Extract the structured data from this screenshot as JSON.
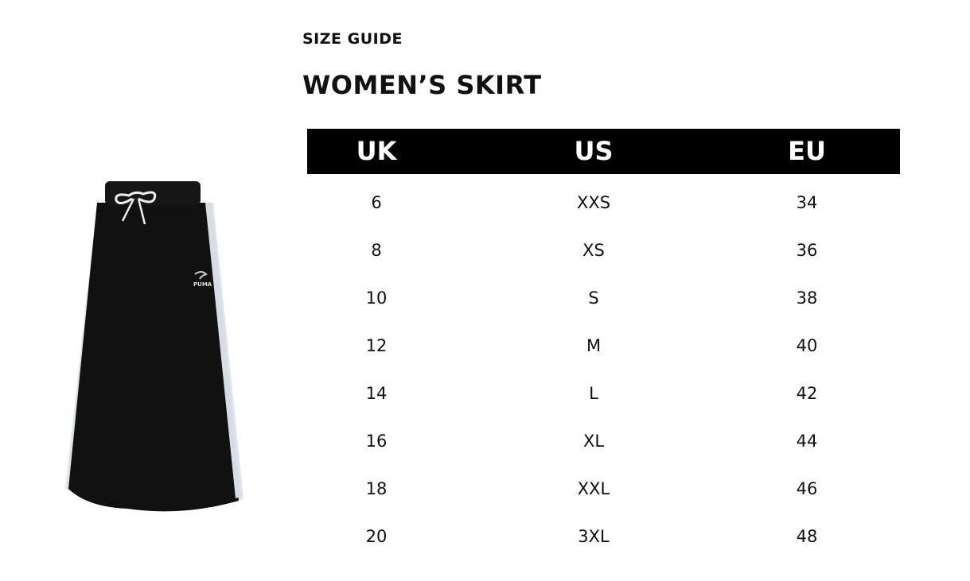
{
  "header": {
    "eyebrow": "SIZE GUIDE",
    "title": "WOMEN’S SKIRT"
  },
  "product_image": {
    "description_icon": "skirt-image",
    "logo": "PUMA"
  },
  "table": {
    "columns": [
      "UK",
      "US",
      "EU"
    ],
    "rows": [
      [
        "6",
        "XXS",
        "34"
      ],
      [
        "8",
        "XS",
        "36"
      ],
      [
        "10",
        "S",
        "38"
      ],
      [
        "12",
        "M",
        "40"
      ],
      [
        "14",
        "L",
        "42"
      ],
      [
        "16",
        "XL",
        "44"
      ],
      [
        "18",
        "XXL",
        "46"
      ],
      [
        "20",
        "3XL",
        "48"
      ]
    ]
  },
  "colors": {
    "header_bg": "#000000",
    "header_text": "#ffffff",
    "text": "#111111"
  }
}
